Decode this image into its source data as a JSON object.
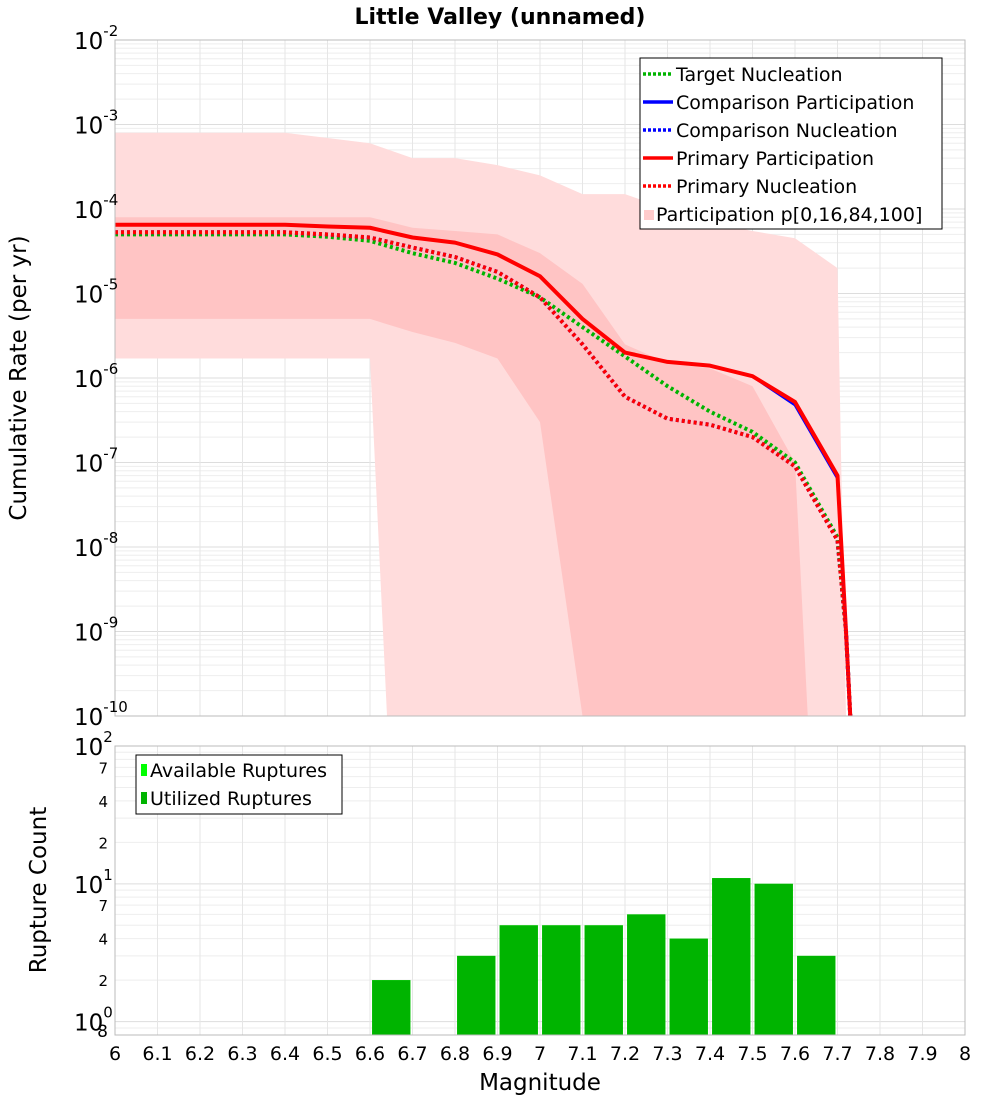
{
  "title": "Little Valley (unnamed)",
  "chart_data": [
    {
      "type": "line",
      "title": "Little Valley (unnamed)",
      "xlabel": "",
      "ylabel": "Cumulative Rate (per yr)",
      "yscale": "log",
      "xlim": [
        6,
        8
      ],
      "ylim": [
        1e-10,
        0.01
      ],
      "y_tick_labels": [
        {
          "base": "10",
          "exp": "-2"
        },
        {
          "base": "10",
          "exp": "-3"
        },
        {
          "base": "10",
          "exp": "-4"
        },
        {
          "base": "10",
          "exp": "-5"
        },
        {
          "base": "10",
          "exp": "-6"
        },
        {
          "base": "10",
          "exp": "-7"
        },
        {
          "base": "10",
          "exp": "-8"
        },
        {
          "base": "10",
          "exp": "-9"
        },
        {
          "base": "10",
          "exp": "-10"
        }
      ],
      "grid": true,
      "legend_position": "top-right",
      "legend": [
        "Target Nucleation",
        "Comparison Participation",
        "Comparison Nucleation",
        "Primary Participation",
        "Primary Nucleation",
        "Participation p[0,16,84,100]"
      ],
      "bands": [
        {
          "name": "Participation p[0,100]",
          "color": "#ffdcdc",
          "x_upper": [
            6.0,
            6.4,
            6.6,
            6.7,
            6.8,
            6.9,
            7.0,
            7.1,
            7.2,
            7.3,
            7.4,
            7.5,
            7.6,
            7.7
          ],
          "upper": [
            0.0008,
            0.0008,
            0.0006,
            0.0004,
            0.0004,
            0.00033,
            0.00025,
            0.00015,
            0.00015,
            0.0001,
            7e-05,
            5.5e-05,
            4.5e-05,
            2e-05
          ],
          "x_lower": [
            6.0,
            6.6,
            6.64
          ],
          "lower": [
            1.7e-06,
            1.7e-06,
            1e-10
          ],
          "x_end": 7.72
        },
        {
          "name": "Participation p[16,84]",
          "color": "#ffc4c4",
          "x_upper": [
            6.0,
            6.6,
            6.7,
            6.8,
            6.9,
            7.0,
            7.1,
            7.2,
            7.3,
            7.4,
            7.5,
            7.6
          ],
          "upper": [
            8e-05,
            8e-05,
            6e-05,
            5.5e-05,
            5e-05,
            3e-05,
            1.3e-05,
            2.5e-06,
            1.5e-06,
            1.3e-06,
            8e-07,
            1e-07
          ],
          "x_lower": [
            6.0,
            6.6,
            6.7,
            6.8,
            6.9,
            7.0,
            7.1
          ],
          "lower": [
            5e-06,
            5e-06,
            3.5e-06,
            2.6e-06,
            1.7e-06,
            3e-07,
            1e-10
          ],
          "x_end": 7.63
        }
      ],
      "series": [
        {
          "name": "Target Nucleation",
          "color": "#00b400",
          "style": "dotted",
          "x": [
            6.0,
            6.1,
            6.2,
            6.3,
            6.4,
            6.5,
            6.6,
            6.7,
            6.8,
            6.9,
            7.0,
            7.1,
            7.2,
            7.3,
            7.4,
            7.5,
            7.6,
            7.7,
            7.72,
            7.73
          ],
          "values": [
            5e-05,
            5e-05,
            5e-05,
            5e-05,
            5e-05,
            4.7e-05,
            4.2e-05,
            3e-05,
            2.3e-05,
            1.5e-05,
            9e-06,
            4e-06,
            1.8e-06,
            8e-07,
            4e-07,
            2.3e-07,
            1e-07,
            1.3e-08,
            1e-09,
            1e-10
          ]
        },
        {
          "name": "Comparison Participation",
          "color": "#0000ff",
          "style": "solid",
          "x": [
            6.0,
            6.1,
            6.2,
            6.3,
            6.4,
            6.5,
            6.6,
            6.7,
            6.8,
            6.9,
            7.0,
            7.1,
            7.2,
            7.3,
            7.4,
            7.5,
            7.6,
            7.7,
            7.72,
            7.73
          ],
          "values": [
            6.5e-05,
            6.5e-05,
            6.5e-05,
            6.5e-05,
            6.5e-05,
            6.2e-05,
            6e-05,
            4.6e-05,
            4e-05,
            2.9e-05,
            1.6e-05,
            5e-06,
            2e-06,
            1.55e-06,
            1.4e-06,
            1.05e-06,
            4.8e-07,
            6.5e-08,
            1e-09,
            1e-10
          ]
        },
        {
          "name": "Comparison Nucleation",
          "color": "#0000ff",
          "style": "dotted",
          "x": [
            6.0,
            6.1,
            6.2,
            6.3,
            6.4,
            6.5,
            6.6,
            6.7,
            6.8,
            6.9,
            7.0,
            7.1,
            7.2,
            7.3,
            7.4,
            7.5,
            7.6,
            7.7,
            7.72,
            7.73
          ],
          "values": [
            5.3e-05,
            5.3e-05,
            5.3e-05,
            5.3e-05,
            5.3e-05,
            5e-05,
            4.6e-05,
            3.5e-05,
            2.7e-05,
            1.8e-05,
            9e-06,
            2.5e-06,
            6e-07,
            3.3e-07,
            2.8e-07,
            2e-07,
            9e-08,
            1.2e-08,
            1e-09,
            1e-10
          ]
        },
        {
          "name": "Primary Participation",
          "color": "#ff0000",
          "style": "solid",
          "x": [
            6.0,
            6.1,
            6.2,
            6.3,
            6.4,
            6.5,
            6.6,
            6.7,
            6.8,
            6.9,
            7.0,
            7.1,
            7.2,
            7.3,
            7.4,
            7.5,
            7.6,
            7.7,
            7.72,
            7.73
          ],
          "values": [
            6.5e-05,
            6.5e-05,
            6.5e-05,
            6.5e-05,
            6.5e-05,
            6.2e-05,
            6e-05,
            4.6e-05,
            4e-05,
            2.9e-05,
            1.6e-05,
            5e-06,
            2e-06,
            1.55e-06,
            1.4e-06,
            1.05e-06,
            5.2e-07,
            7e-08,
            1e-09,
            1e-10
          ]
        },
        {
          "name": "Primary Nucleation",
          "color": "#ff0000",
          "style": "dotted",
          "x": [
            6.0,
            6.1,
            6.2,
            6.3,
            6.4,
            6.5,
            6.6,
            6.7,
            6.8,
            6.9,
            7.0,
            7.1,
            7.2,
            7.3,
            7.4,
            7.5,
            7.6,
            7.7,
            7.72,
            7.73
          ],
          "values": [
            5.3e-05,
            5.3e-05,
            5.3e-05,
            5.3e-05,
            5.3e-05,
            5e-05,
            4.6e-05,
            3.5e-05,
            2.7e-05,
            1.8e-05,
            9e-06,
            2.5e-06,
            6e-07,
            3.3e-07,
            2.8e-07,
            2e-07,
            9e-08,
            1.2e-08,
            1e-09,
            1e-10
          ]
        }
      ]
    },
    {
      "type": "bar",
      "xlabel": "Magnitude",
      "ylabel": "Rupture Count",
      "yscale": "log",
      "xlim": [
        6,
        8
      ],
      "ylim": [
        0.8,
        100
      ],
      "x_ticks": [
        "6",
        "6.1",
        "6.2",
        "6.3",
        "6.4",
        "6.5",
        "6.6",
        "6.7",
        "6.8",
        "6.9",
        "7",
        "7.1",
        "7.2",
        "7.3",
        "7.4",
        "7.5",
        "7.6",
        "7.7",
        "7.8",
        "7.9",
        "8"
      ],
      "y_major_ticks": [
        {
          "base": "10",
          "exp": "2"
        },
        {
          "base": "10",
          "exp": "1"
        },
        {
          "base": "10",
          "exp": "0"
        }
      ],
      "y_minor_labels": [
        "7",
        "4",
        "2",
        "7",
        "4",
        "2",
        "8"
      ],
      "grid": true,
      "legend_position": "top-left",
      "legend": [
        "Available Ruptures",
        "Utilized Ruptures"
      ],
      "colors": {
        "available": "#00ff00",
        "utilized": "#00b400"
      },
      "bar_width": 0.09,
      "x": [
        6.65,
        6.85,
        6.95,
        7.05,
        7.15,
        7.25,
        7.35,
        7.45,
        7.55,
        7.65
      ],
      "available": [
        2,
        3,
        5,
        5,
        5,
        6,
        4,
        11,
        10,
        3
      ],
      "utilized": [
        2,
        3,
        5,
        5,
        5,
        6,
        4,
        11,
        10,
        3
      ]
    }
  ]
}
